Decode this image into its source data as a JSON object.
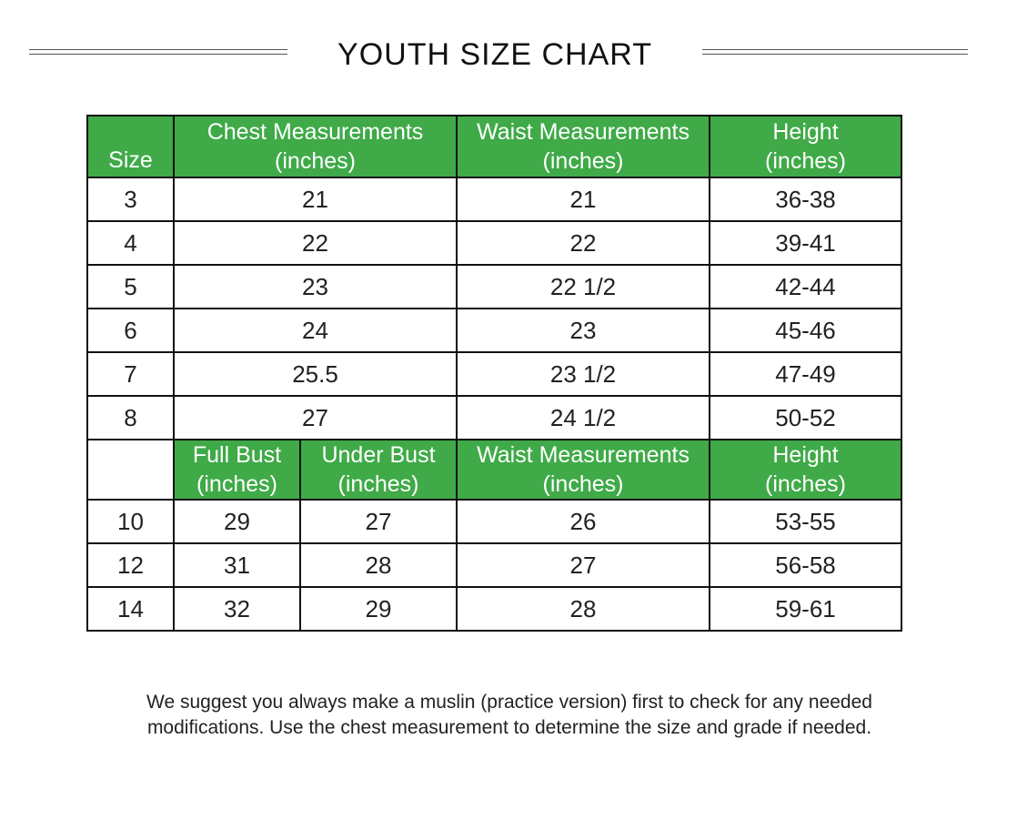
{
  "title": "YOUTH SIZE CHART",
  "colors": {
    "header_green": "#3faa47",
    "border": "#111111"
  },
  "table1": {
    "headers": {
      "size": "Size",
      "chest": [
        "Chest Measurements",
        "(inches)"
      ],
      "waist": [
        "Waist Measurements",
        "(inches)"
      ],
      "height": [
        "Height",
        "(inches)"
      ]
    },
    "rows": [
      [
        "3",
        "21",
        "21",
        "36-38"
      ],
      [
        "4",
        "22",
        "22",
        "39-41"
      ],
      [
        "5",
        "23",
        "22 1/2",
        "42-44"
      ],
      [
        "6",
        "24",
        "23",
        "45-46"
      ],
      [
        "7",
        "25.5",
        "23 1/2",
        "47-49"
      ],
      [
        "8",
        "27",
        "24 1/2",
        "50-52"
      ]
    ]
  },
  "table2": {
    "headers": {
      "full_bust": [
        "Full Bust",
        "(inches)"
      ],
      "under_bust": [
        "Under Bust",
        "(inches)"
      ],
      "waist": [
        "Waist Measurements",
        "(inches)"
      ],
      "height": [
        "Height",
        "(inches)"
      ]
    },
    "rows": [
      [
        "10",
        "29",
        "27",
        "26",
        "53-55"
      ],
      [
        "12",
        "31",
        "28",
        "27",
        "56-58"
      ],
      [
        "14",
        "32",
        "29",
        "28",
        "59-61"
      ]
    ]
  },
  "note": {
    "line1": "We suggest you always make a muslin (practice version) first to check for any needed",
    "line2": "modifications.  Use the chest measurement to determine the size and grade if needed."
  }
}
